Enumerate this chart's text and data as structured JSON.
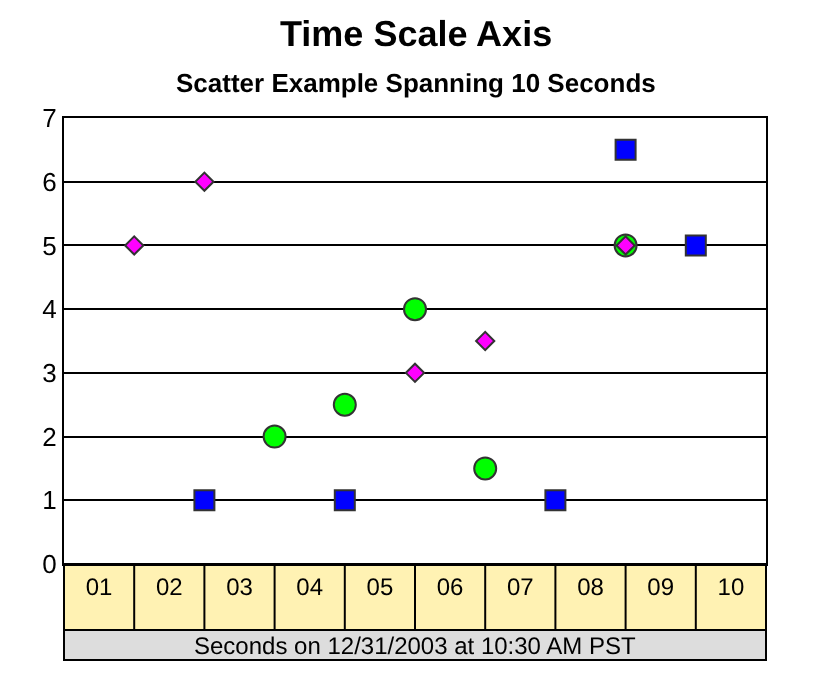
{
  "chart_data": {
    "type": "scatter",
    "title": "Time Scale Axis",
    "subtitle": "Scatter Example Spanning 10 Seconds",
    "xlabel": "Seconds on 12/31/2003 at 10:30 AM PST",
    "xlim": [
      0,
      10
    ],
    "xticks": [
      {
        "value": 0.5,
        "label": "01"
      },
      {
        "value": 1.5,
        "label": "02"
      },
      {
        "value": 2.5,
        "label": "03"
      },
      {
        "value": 3.5,
        "label": "04"
      },
      {
        "value": 4.5,
        "label": "05"
      },
      {
        "value": 5.5,
        "label": "06"
      },
      {
        "value": 6.5,
        "label": "07"
      },
      {
        "value": 7.5,
        "label": "08"
      },
      {
        "value": 8.5,
        "label": "09"
      },
      {
        "value": 9.5,
        "label": "10"
      }
    ],
    "ylim": [
      0,
      7
    ],
    "yticks": [
      0,
      1,
      2,
      3,
      4,
      5,
      6,
      7
    ],
    "grid": "y",
    "series": [
      {
        "color": "#ff00ff",
        "marker": "diamond",
        "x": [
          1,
          2,
          5,
          6,
          8
        ],
        "values": [
          5,
          6,
          3,
          3.5,
          5
        ]
      },
      {
        "color": "#00ff00",
        "marker": "circle",
        "x": [
          3,
          4,
          5,
          6,
          8
        ],
        "values": [
          2,
          2.5,
          4,
          1.5,
          5
        ]
      },
      {
        "color": "#0000ff",
        "marker": "square",
        "x": [
          2,
          4,
          7,
          8,
          9
        ],
        "values": [
          1,
          1,
          1,
          6.5,
          5
        ]
      }
    ]
  }
}
